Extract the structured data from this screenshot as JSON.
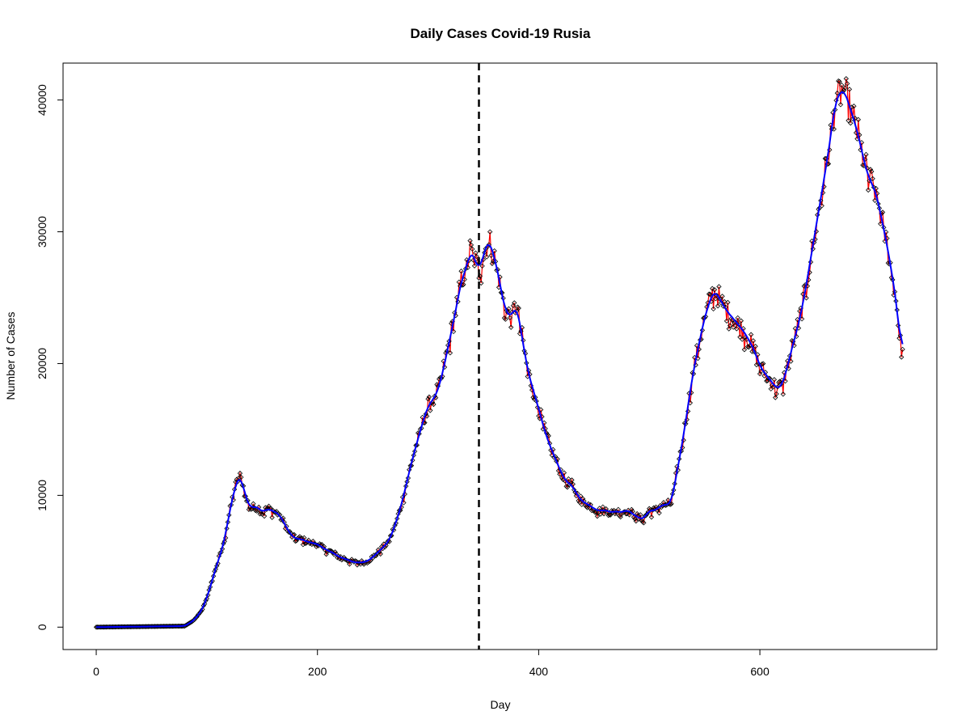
{
  "chart_data": {
    "type": "line",
    "title": "Daily Cases Covid-19 Rusia",
    "xlabel": "Day",
    "ylabel": "Number of Cases",
    "xlim": [
      -30,
      760
    ],
    "ylim": [
      -1700,
      42800
    ],
    "x_ticks": [
      0,
      200,
      400,
      600
    ],
    "y_ticks": [
      0,
      10000,
      20000,
      30000,
      40000
    ],
    "vline": {
      "x": 346,
      "style": "dashed",
      "color": "#000000"
    },
    "observed_anchors": [
      [
        0,
        0
      ],
      [
        80,
        80
      ],
      [
        88,
        500
      ],
      [
        95,
        1200
      ],
      [
        100,
        2200
      ],
      [
        105,
        3600
      ],
      [
        110,
        5000
      ],
      [
        115,
        6200
      ],
      [
        120,
        8500
      ],
      [
        125,
        10500
      ],
      [
        128,
        11200
      ],
      [
        131,
        11500
      ],
      [
        135,
        9800
      ],
      [
        140,
        9000
      ],
      [
        145,
        9200
      ],
      [
        150,
        8700
      ],
      [
        155,
        9000
      ],
      [
        160,
        8800
      ],
      [
        165,
        8600
      ],
      [
        170,
        7900
      ],
      [
        175,
        7100
      ],
      [
        180,
        6700
      ],
      [
        185,
        6700
      ],
      [
        190,
        6500
      ],
      [
        195,
        6400
      ],
      [
        200,
        6300
      ],
      [
        205,
        6000
      ],
      [
        210,
        5800
      ],
      [
        215,
        5600
      ],
      [
        220,
        5300
      ],
      [
        225,
        5200
      ],
      [
        230,
        5000
      ],
      [
        235,
        4900
      ],
      [
        240,
        4900
      ],
      [
        245,
        5000
      ],
      [
        250,
        5300
      ],
      [
        255,
        5700
      ],
      [
        260,
        6100
      ],
      [
        265,
        6600
      ],
      [
        270,
        7700
      ],
      [
        275,
        9000
      ],
      [
        280,
        10700
      ],
      [
        285,
        12500
      ],
      [
        290,
        14000
      ],
      [
        295,
        15500
      ],
      [
        300,
        16800
      ],
      [
        305,
        17300
      ],
      [
        310,
        18200
      ],
      [
        315,
        20000
      ],
      [
        320,
        22000
      ],
      [
        325,
        24000
      ],
      [
        330,
        26300
      ],
      [
        335,
        27300
      ],
      [
        338,
        28600
      ],
      [
        342,
        28000
      ],
      [
        346,
        27000
      ],
      [
        350,
        28200
      ],
      [
        355,
        29500
      ],
      [
        358,
        28500
      ],
      [
        362,
        27500
      ],
      [
        366,
        25500
      ],
      [
        370,
        24000
      ],
      [
        375,
        23500
      ],
      [
        380,
        24500
      ],
      [
        385,
        22000
      ],
      [
        390,
        19500
      ],
      [
        395,
        18000
      ],
      [
        400,
        16600
      ],
      [
        405,
        15000
      ],
      [
        410,
        13800
      ],
      [
        415,
        12800
      ],
      [
        420,
        11800
      ],
      [
        425,
        11000
      ],
      [
        430,
        10800
      ],
      [
        435,
        10000
      ],
      [
        440,
        9500
      ],
      [
        445,
        9300
      ],
      [
        450,
        9000
      ],
      [
        455,
        8800
      ],
      [
        460,
        8900
      ],
      [
        465,
        8700
      ],
      [
        470,
        8800
      ],
      [
        475,
        8700
      ],
      [
        480,
        8900
      ],
      [
        485,
        8600
      ],
      [
        490,
        8300
      ],
      [
        495,
        8200
      ],
      [
        500,
        8900
      ],
      [
        505,
        8800
      ],
      [
        510,
        9200
      ],
      [
        515,
        9300
      ],
      [
        520,
        9400
      ],
      [
        525,
        11800
      ],
      [
        530,
        14000
      ],
      [
        535,
        16800
      ],
      [
        540,
        19500
      ],
      [
        545,
        21500
      ],
      [
        550,
        23500
      ],
      [
        555,
        24800
      ],
      [
        558,
        25500
      ],
      [
        562,
        25200
      ],
      [
        565,
        24700
      ],
      [
        570,
        24000
      ],
      [
        575,
        23500
      ],
      [
        580,
        23000
      ],
      [
        585,
        22500
      ],
      [
        590,
        21800
      ],
      [
        595,
        21000
      ],
      [
        600,
        19800
      ],
      [
        605,
        19200
      ],
      [
        610,
        18700
      ],
      [
        615,
        18100
      ],
      [
        620,
        18300
      ],
      [
        625,
        19800
      ],
      [
        630,
        21500
      ],
      [
        635,
        23000
      ],
      [
        640,
        25000
      ],
      [
        645,
        27500
      ],
      [
        650,
        30000
      ],
      [
        655,
        32500
      ],
      [
        660,
        35000
      ],
      [
        665,
        37800
      ],
      [
        668,
        39800
      ],
      [
        672,
        40500
      ],
      [
        676,
        40800
      ],
      [
        680,
        39800
      ],
      [
        685,
        38500
      ],
      [
        690,
        37000
      ],
      [
        695,
        35000
      ],
      [
        700,
        33800
      ],
      [
        705,
        33000
      ],
      [
        710,
        31000
      ],
      [
        715,
        29000
      ],
      [
        720,
        26500
      ],
      [
        724,
        24300
      ],
      [
        727,
        21500
      ],
      [
        729,
        20800
      ]
    ],
    "n_points": 730,
    "series": [
      {
        "color": "#ff0000",
        "style": "line"
      },
      {
        "color": "#000000",
        "style": "diamond-markers"
      },
      {
        "color": "#0000ff",
        "style": "smoothed-line"
      }
    ]
  }
}
